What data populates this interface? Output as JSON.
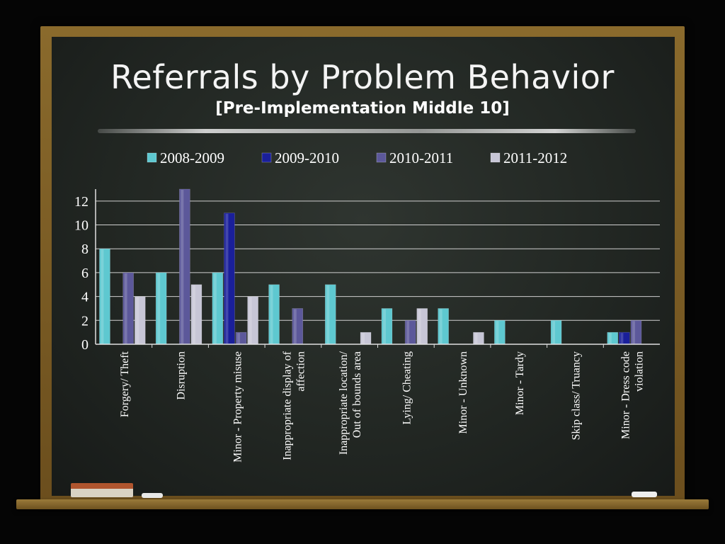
{
  "chart_data": {
    "type": "bar",
    "title": "Referrals by Problem Behavior",
    "subtitle": "[Pre-Implementation Middle 10]",
    "categories": [
      [
        "Forgery/ Theft"
      ],
      [
        "Disruption"
      ],
      [
        "Minor - Property misuse"
      ],
      [
        "Inappropriate display of",
        "affection"
      ],
      [
        "Inappropriate location/",
        "Out of bounds area"
      ],
      [
        "Lying/ Cheating"
      ],
      [
        "Minor - Unknown"
      ],
      [
        "Minor - Tardy"
      ],
      [
        "Skip class/ Truancy"
      ],
      [
        "Minor - Dress code",
        "violation"
      ]
    ],
    "series": [
      {
        "name": "2008-2009",
        "color": "#5ec8d0",
        "values": [
          8,
          6,
          6,
          5,
          5,
          3,
          3,
          2,
          2,
          1
        ]
      },
      {
        "name": "2009-2010",
        "color": "#1a1f9a",
        "values": [
          0,
          0,
          11,
          0,
          0,
          0,
          0,
          0,
          0,
          1
        ]
      },
      {
        "name": "2010-2011",
        "color": "#5c589a",
        "values": [
          6,
          13,
          1,
          3,
          0,
          2,
          0,
          0,
          0,
          2
        ]
      },
      {
        "name": "2011-2012",
        "color": "#c7c6d6",
        "values": [
          4,
          5,
          4,
          0,
          1,
          3,
          1,
          0,
          0,
          0
        ]
      }
    ],
    "ylim": [
      0,
      13
    ],
    "yticks": [
      0,
      2,
      4,
      6,
      8,
      10,
      12
    ],
    "grid": true,
    "legend": "top"
  }
}
